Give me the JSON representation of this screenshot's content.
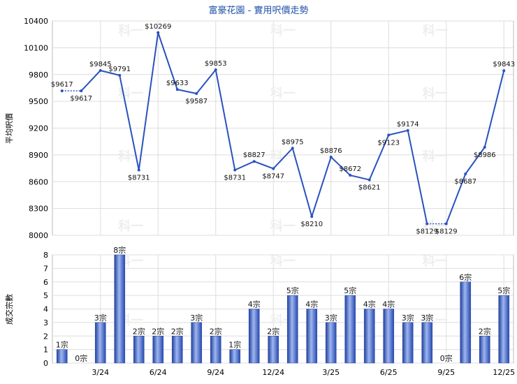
{
  "chart_data": [
    {
      "type": "line",
      "title": "富豪花園 - 實用呎價走勢",
      "ylabel": "平均呎價",
      "ylim": [
        8000,
        10400
      ],
      "yticks": [
        8000,
        8300,
        8600,
        8900,
        9200,
        9500,
        9800,
        10100,
        10400
      ],
      "x": [
        "1/24",
        "2/24",
        "3/24",
        "4/24",
        "5/24",
        "6/24",
        "7/24",
        "8/24",
        "9/24",
        "10/24",
        "11/24",
        "12/24",
        "1/25",
        "2/25",
        "3/25",
        "4/25",
        "5/25",
        "6/25",
        "7/25",
        "8/25",
        "9/25",
        "10/25",
        "11/25",
        "12/25"
      ],
      "values": [
        9617,
        9617,
        9845,
        9791,
        8731,
        10269,
        9633,
        9587,
        9853,
        8731,
        8827,
        8747,
        8975,
        8210,
        8876,
        8672,
        8621,
        9123,
        9174,
        8129,
        8129,
        8687,
        8986,
        9843
      ],
      "labels": [
        "$9617",
        "$9617",
        "$9845",
        "$9791",
        "$8731",
        "$10269",
        "$9633",
        "$9587",
        "$9853",
        "$8731",
        "$8827",
        "$8747",
        "$8975",
        "$8210",
        "$8876",
        "$8672",
        "$8621",
        "$9123",
        "$9174",
        "$8129",
        "$8129",
        "$8687",
        "$8986",
        "$9843"
      ],
      "dotted_segments": [
        [
          0,
          1
        ],
        [
          19,
          20
        ]
      ],
      "color": "#2a52be",
      "grid": true
    },
    {
      "type": "bar",
      "ylabel": "成交宗數",
      "ylim": [
        0,
        8
      ],
      "yticks": [
        0,
        1,
        2,
        3,
        4,
        5,
        6,
        7,
        8
      ],
      "categories": [
        "1/24",
        "2/24",
        "3/24",
        "4/24",
        "5/24",
        "6/24",
        "7/24",
        "8/24",
        "9/24",
        "10/24",
        "11/24",
        "12/24",
        "1/25",
        "2/25",
        "3/25",
        "4/25",
        "5/25",
        "6/25",
        "7/25",
        "8/25",
        "9/25",
        "10/25",
        "11/25",
        "12/25"
      ],
      "values": [
        1,
        0,
        3,
        8,
        2,
        2,
        2,
        3,
        2,
        1,
        4,
        2,
        5,
        4,
        3,
        5,
        4,
        4,
        3,
        3,
        0,
        6,
        2,
        5
      ],
      "labels": [
        "1宗",
        "0宗",
        "3宗",
        "8宗",
        "2宗",
        "2宗",
        "2宗",
        "3宗",
        "2宗",
        "1宗",
        "4宗",
        "2宗",
        "5宗",
        "4宗",
        "3宗",
        "5宗",
        "4宗",
        "4宗",
        "3宗",
        "3宗",
        "0宗",
        "6宗",
        "2宗",
        "5宗"
      ],
      "xtick_labels": [
        "3/24",
        "6/24",
        "9/24",
        "12/24",
        "3/25",
        "6/25",
        "9/25",
        "12/25"
      ],
      "xtick_index": [
        2,
        5,
        8,
        11,
        14,
        17,
        20,
        23
      ],
      "color": "#3a64c8",
      "grid": true
    }
  ],
  "watermark": "科一"
}
